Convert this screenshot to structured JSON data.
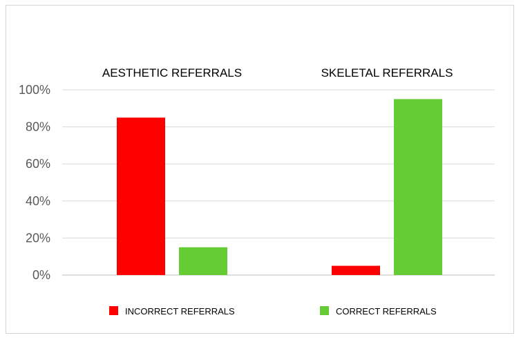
{
  "chart_data": {
    "type": "bar",
    "categories": [
      "AESTHETIC REFERRALS",
      "SKELETAL REFERRALS"
    ],
    "series": [
      {
        "name": "INCORRECT REFERRALS",
        "values": [
          85,
          5
        ],
        "color": "#ff0000"
      },
      {
        "name": "CORRECT REFERRALS",
        "values": [
          15,
          95
        ],
        "color": "#66cc33"
      }
    ],
    "ylim": [
      0,
      100
    ],
    "yticks": [
      0,
      20,
      40,
      60,
      80,
      100
    ],
    "ytick_labels": [
      "0%",
      "20%",
      "40%",
      "60%",
      "80%",
      "100%"
    ],
    "grid": true,
    "legend_position": "bottom"
  }
}
